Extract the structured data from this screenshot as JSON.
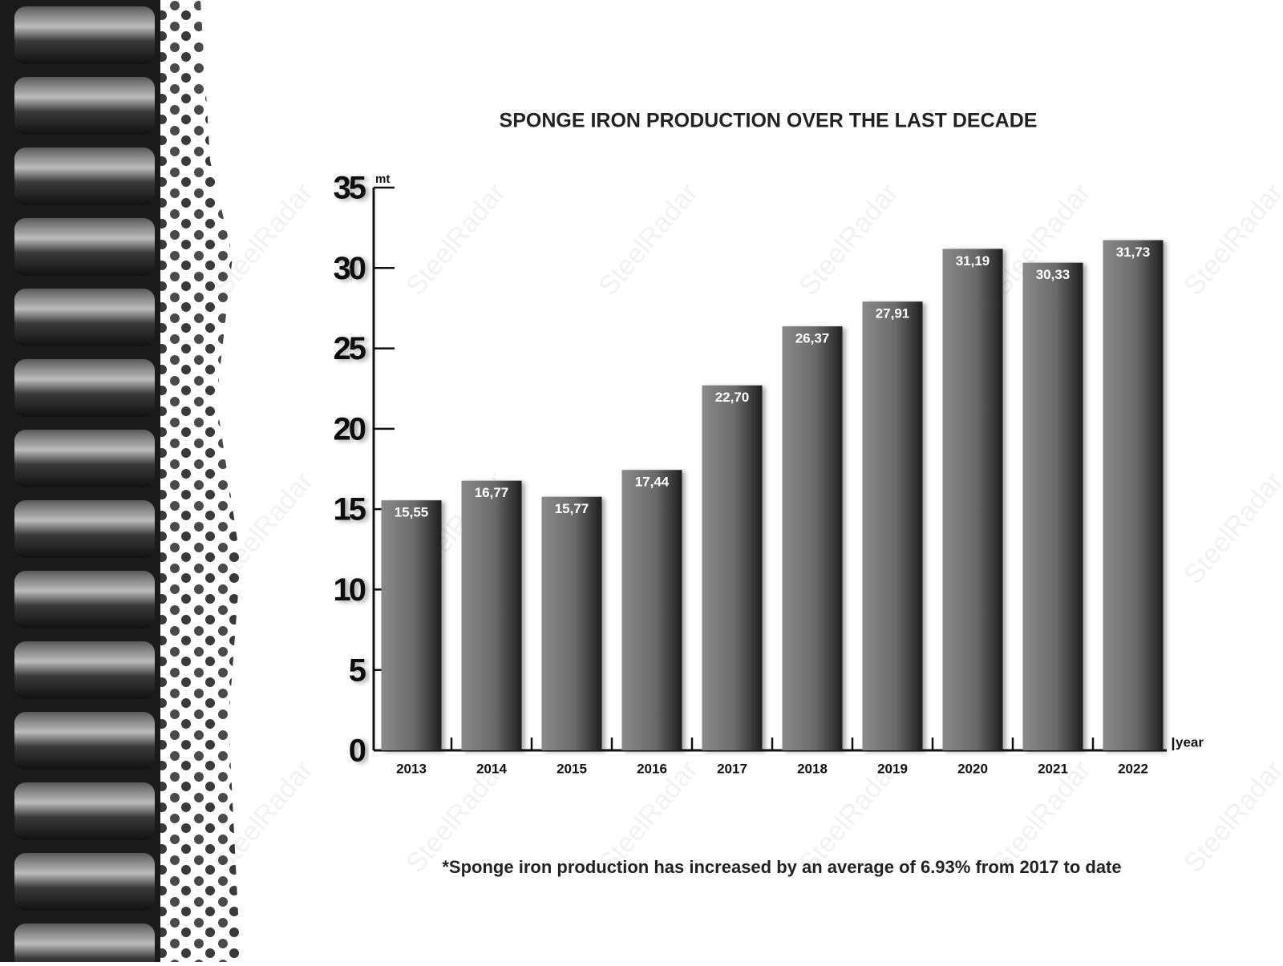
{
  "chart_data": {
    "type": "bar",
    "title": "SPONGE IRON PRODUCTION OVER THE LAST DECADE",
    "y_axis_label": "mt",
    "x_axis_label": "year",
    "categories": [
      "2013",
      "2014",
      "2015",
      "2016",
      "2017",
      "2018",
      "2019",
      "2020",
      "2021",
      "2022"
    ],
    "values": [
      15.55,
      16.77,
      15.77,
      17.44,
      22.7,
      26.37,
      27.91,
      31.19,
      30.33,
      31.73
    ],
    "value_labels": [
      "15,55",
      "16,77",
      "15,77",
      "17,44",
      "22,70",
      "26,37",
      "27,91",
      "31,19",
      "30,33",
      "31,73"
    ],
    "ylim": [
      0,
      35
    ],
    "yticks": [
      0,
      5,
      10,
      15,
      20,
      25,
      30,
      35
    ],
    "color": "#6e6e6e",
    "footnote": "*Sponge iron production has increased by an average of 6.93% from 2017 to date",
    "watermark": "SteelRadar"
  }
}
